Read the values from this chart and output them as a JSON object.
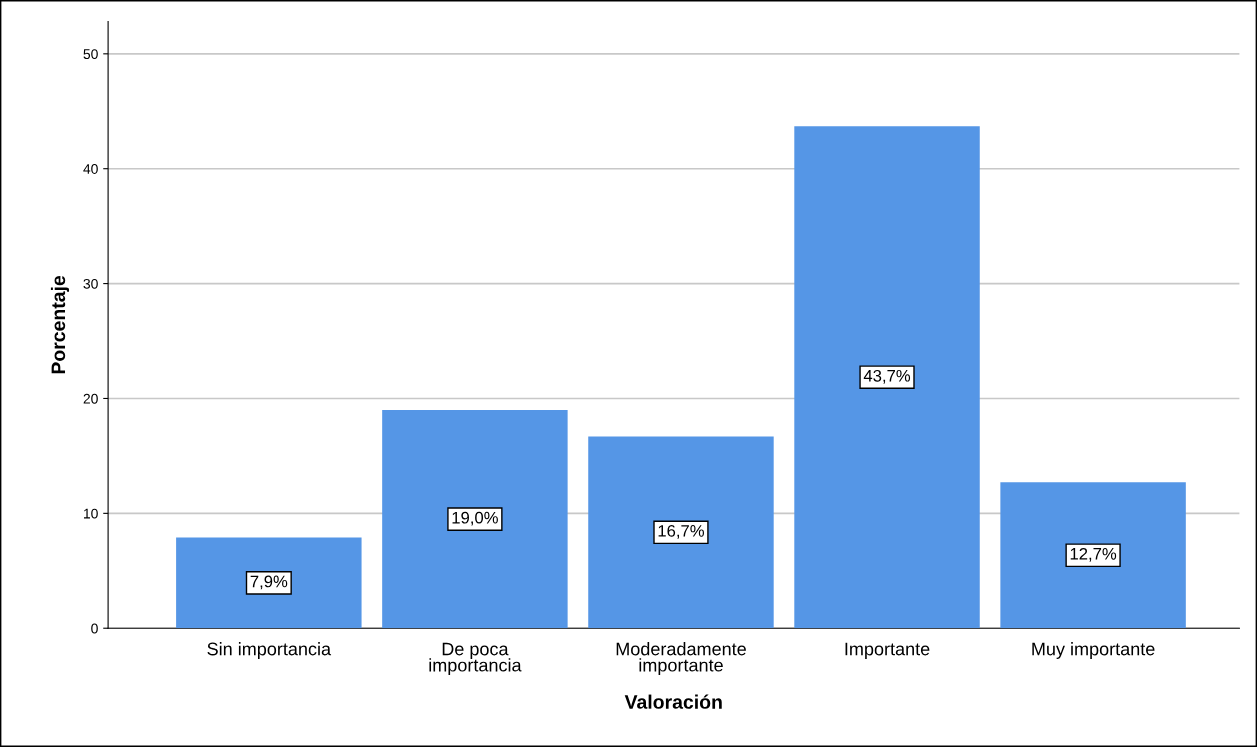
{
  "chart_data": {
    "type": "bar",
    "xlabel": "Valoración",
    "ylabel": "Porcentaje",
    "categories": [
      "Sin importancia",
      "De poca\nimportancia",
      "Moderadamente\nimportante",
      "Importante",
      "Muy importante"
    ],
    "values": [
      7.9,
      19.0,
      16.7,
      43.7,
      12.7
    ],
    "value_labels": [
      "7,9%",
      "19,0%",
      "16,7%",
      "43,7%",
      "12,7%"
    ],
    "color": "#5596e6",
    "ylim": [
      0,
      52.8
    ],
    "yticks": [
      0,
      10,
      20,
      30,
      40,
      50
    ],
    "grid": "y"
  }
}
